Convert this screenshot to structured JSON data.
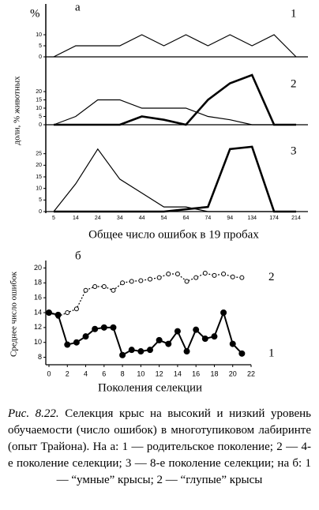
{
  "chart_data": [
    {
      "type": "line",
      "panel_label": "а",
      "y_unit": "%",
      "ylabel": "доли, % животных",
      "xlabel": "Общее число ошибок в 19 пробах",
      "categories": [
        "5",
        "14",
        "24",
        "34",
        "44",
        "54",
        "64",
        "74",
        "94",
        "134",
        "174",
        "214"
      ],
      "panels": [
        {
          "label": "1",
          "ylim": [
            0,
            15
          ],
          "yticks": [
            0,
            5,
            10
          ],
          "series": [
            {
              "color": "#000",
              "width": 1.2,
              "values": [
                0,
                5,
                5,
                5,
                10,
                5,
                10,
                5,
                10,
                5,
                10,
                0
              ]
            }
          ]
        },
        {
          "label": "2",
          "ylim": [
            0,
            30
          ],
          "yticks": [
            0,
            5,
            10,
            15,
            20
          ],
          "series": [
            {
              "color": "#000",
              "width": 1.2,
              "values": [
                0,
                5,
                15,
                15,
                10,
                10,
                10,
                5,
                3,
                0,
                0,
                0
              ]
            },
            {
              "color": "#000",
              "width": 2.6,
              "values": [
                0,
                0,
                0,
                0,
                5,
                3,
                0,
                15,
                25,
                30,
                0,
                0
              ]
            }
          ]
        },
        {
          "label": "3",
          "ylim": [
            0,
            30
          ],
          "yticks": [
            0,
            5,
            10,
            15,
            20,
            25
          ],
          "series": [
            {
              "color": "#000",
              "width": 1.2,
              "values": [
                0,
                12,
                27,
                14,
                8,
                2,
                2,
                0,
                0,
                0,
                0,
                0
              ]
            },
            {
              "color": "#000",
              "width": 2.6,
              "values": [
                0,
                0,
                0,
                0,
                0,
                0,
                1,
                2,
                27,
                28,
                0,
                0
              ]
            }
          ]
        }
      ]
    },
    {
      "type": "scatterline",
      "panel_label": "б",
      "ylabel": "Среднее число ошибок",
      "xlabel": "Поколения селекции",
      "x": [
        0,
        1,
        2,
        3,
        4,
        5,
        6,
        7,
        8,
        9,
        10,
        11,
        12,
        13,
        14,
        15,
        16,
        17,
        18,
        19,
        20,
        21
      ],
      "xlim": [
        0,
        22
      ],
      "xticks": [
        0,
        2,
        4,
        6,
        8,
        10,
        12,
        14,
        16,
        18,
        20,
        22
      ],
      "ylim": [
        7,
        21
      ],
      "yticks": [
        8,
        10,
        12,
        14,
        16,
        18,
        20
      ],
      "series": [
        {
          "name": "2",
          "color": "#000",
          "dash": true,
          "marker": "open",
          "values": [
            14,
            13.5,
            14,
            14.5,
            17,
            17.5,
            17.5,
            17,
            18,
            18.2,
            18.3,
            18.5,
            18.7,
            19.2,
            19.2,
            18.2,
            18.7,
            19.3,
            19,
            19.2,
            18.8,
            18.7
          ]
        },
        {
          "name": "1",
          "color": "#000",
          "dash": false,
          "marker": "filled",
          "values": [
            14,
            13.7,
            9.7,
            10,
            10.8,
            11.8,
            12,
            12,
            8.3,
            9,
            8.8,
            9,
            10.3,
            9.8,
            11.5,
            8.8,
            11.7,
            10.5,
            10.8,
            14,
            9.8,
            8.5
          ]
        }
      ]
    }
  ],
  "caption": {
    "label": "Рис. 8.22.",
    "text": "Селекция крыс на высокий и низкий уровень обучаемости (число ошибок) в многотупиковом лабиринте (опыт Трайона). На а: 1 — родительское поколение; 2 — 4-е поколение селекции; 3 — 8-е поколение селекции; на б: 1 — “умные” крысы; 2 — “глупые” крысы"
  }
}
